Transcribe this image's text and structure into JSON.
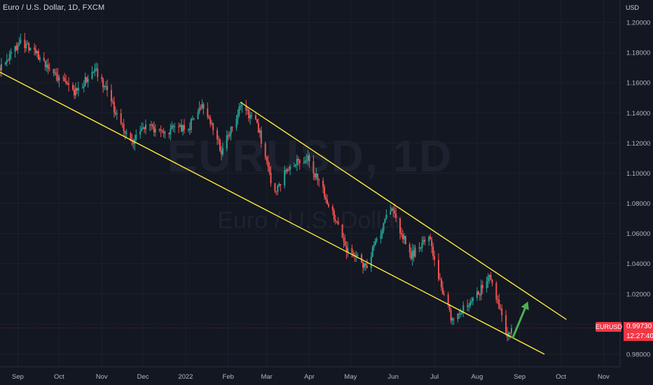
{
  "header": {
    "title": "Euro / U.S. Dollar, 1D, FXCM"
  },
  "watermark": {
    "symbol": "EURUSD, 1D",
    "name": "Euro / U.S. Dollar"
  },
  "price_axis": {
    "currency": "USD"
  },
  "last_price": {
    "symbol": "EURUSD",
    "value": "0.99730",
    "countdown": "12:27:40"
  },
  "colors": {
    "background": "#131722",
    "up": "#26a69a",
    "down": "#ef5350",
    "trendline": "#ffeb3b",
    "arrow": "#4caf50",
    "badge": "#f23645"
  },
  "chart_data": {
    "type": "candlestick",
    "title": "Euro / U.S. Dollar, 1D, FXCM",
    "ylabel": "USD",
    "ylim": [
      0.975,
      1.205
    ],
    "x_range": [
      "2021-08-19",
      "2022-11-13"
    ],
    "y_ticks": [
      "1.20000",
      "1.18000",
      "1.16000",
      "1.14000",
      "1.12000",
      "1.10000",
      "1.08000",
      "1.06000",
      "1.04000",
      "1.02000",
      "1.00000",
      "0.98000"
    ],
    "x_ticks": [
      {
        "label": "Sep",
        "date": "2021-09-01"
      },
      {
        "label": "Oct",
        "date": "2021-10-01"
      },
      {
        "label": "Nov",
        "date": "2021-11-01"
      },
      {
        "label": "Dec",
        "date": "2021-12-01"
      },
      {
        "label": "2022",
        "date": "2022-01-01"
      },
      {
        "label": "Feb",
        "date": "2022-02-01"
      },
      {
        "label": "Mar",
        "date": "2022-03-01"
      },
      {
        "label": "Apr",
        "date": "2022-04-01"
      },
      {
        "label": "May",
        "date": "2022-05-01"
      },
      {
        "label": "Jun",
        "date": "2022-06-01"
      },
      {
        "label": "Jul",
        "date": "2022-07-01"
      },
      {
        "label": "Aug",
        "date": "2022-08-01"
      },
      {
        "label": "Sep",
        "date": "2022-09-01"
      },
      {
        "label": "Oct",
        "date": "2022-10-01"
      },
      {
        "label": "Nov",
        "date": "2022-11-01"
      }
    ],
    "price_path": [
      {
        "date": "2021-08-19",
        "close": 1.17
      },
      {
        "date": "2021-08-27",
        "close": 1.179
      },
      {
        "date": "2021-09-03",
        "close": 1.188
      },
      {
        "date": "2021-09-16",
        "close": 1.178
      },
      {
        "date": "2021-09-28",
        "close": 1.165
      },
      {
        "date": "2021-10-12",
        "close": 1.154
      },
      {
        "date": "2021-10-28",
        "close": 1.168
      },
      {
        "date": "2021-11-04",
        "close": 1.156
      },
      {
        "date": "2021-11-16",
        "close": 1.13
      },
      {
        "date": "2021-11-24",
        "close": 1.12
      },
      {
        "date": "2021-12-01",
        "close": 1.132
      },
      {
        "date": "2021-12-15",
        "close": 1.128
      },
      {
        "date": "2022-01-03",
        "close": 1.13
      },
      {
        "date": "2022-01-13",
        "close": 1.147
      },
      {
        "date": "2022-01-27",
        "close": 1.115
      },
      {
        "date": "2022-02-10",
        "close": 1.144
      },
      {
        "date": "2022-02-22",
        "close": 1.133
      },
      {
        "date": "2022-03-07",
        "close": 1.085
      },
      {
        "date": "2022-03-16",
        "close": 1.104
      },
      {
        "date": "2022-03-31",
        "close": 1.11
      },
      {
        "date": "2022-04-14",
        "close": 1.082
      },
      {
        "date": "2022-04-28",
        "close": 1.05
      },
      {
        "date": "2022-05-12",
        "close": 1.038
      },
      {
        "date": "2022-05-30",
        "close": 1.077
      },
      {
        "date": "2022-06-14",
        "close": 1.045
      },
      {
        "date": "2022-06-27",
        "close": 1.058
      },
      {
        "date": "2022-07-05",
        "close": 1.027
      },
      {
        "date": "2022-07-14",
        "close": 1.002
      },
      {
        "date": "2022-07-28",
        "close": 1.015
      },
      {
        "date": "2022-08-10",
        "close": 1.03
      },
      {
        "date": "2022-08-16",
        "close": 1.016
      },
      {
        "date": "2022-08-23",
        "close": 0.993
      },
      {
        "date": "2022-08-26",
        "close": 0.9973
      }
    ],
    "last_value": 0.9973,
    "trendlines": [
      {
        "from": {
          "date": "2021-08-19",
          "value": 1.167
        },
        "to": {
          "date": "2022-09-19",
          "value": 0.98
        }
      },
      {
        "from": {
          "date": "2022-02-10",
          "value": 1.147
        },
        "to": {
          "date": "2022-10-05",
          "value": 1.003
        }
      }
    ],
    "arrow": {
      "from": {
        "date": "2022-08-27",
        "value": 0.991
      },
      "to": {
        "date": "2022-09-07",
        "value": 1.015
      }
    }
  }
}
